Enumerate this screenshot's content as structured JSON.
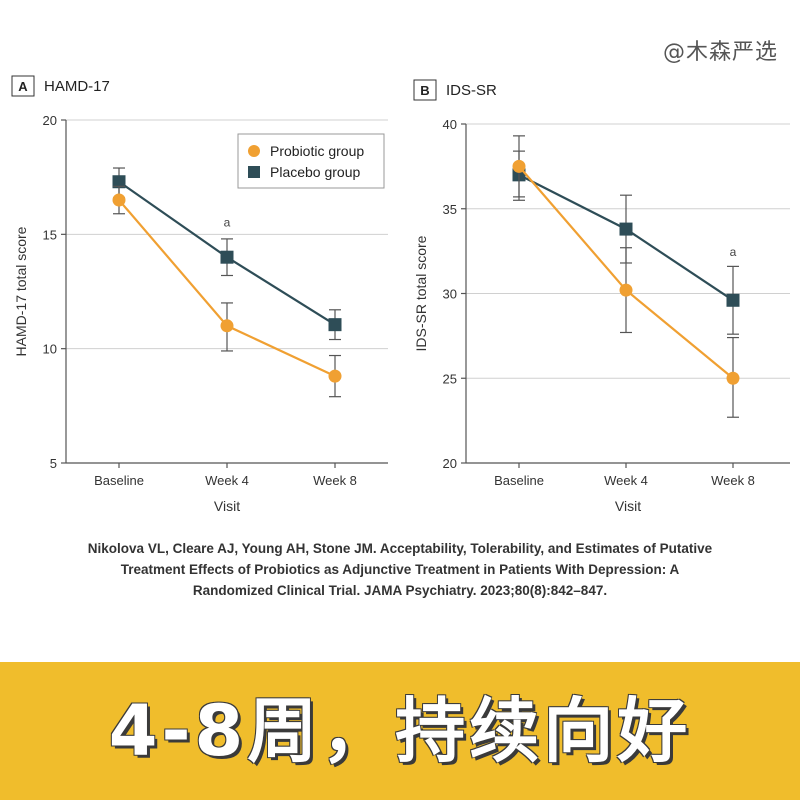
{
  "watermark": "@木森严选",
  "chart_data": [
    {
      "type": "line",
      "panel": "A",
      "title": "HAMD-17",
      "xlabel": "Visit",
      "ylabel": "HAMD-17 total score",
      "categories": [
        "Baseline",
        "Week 4",
        "Week 8"
      ],
      "ylim": [
        5,
        20
      ],
      "yticks": [
        5,
        10,
        15,
        20
      ],
      "grid": true,
      "legend_position": "top-right",
      "series": [
        {
          "name": "Probiotic group",
          "color": "#f0a032",
          "marker": "circle",
          "values": [
            16.5,
            11.0,
            8.8
          ],
          "err_low": [
            15.9,
            9.9,
            7.9
          ],
          "err_high": [
            17.1,
            12.0,
            9.7
          ]
        },
        {
          "name": "Placebo group",
          "color": "#2e4d57",
          "marker": "square",
          "values": [
            17.3,
            14.0,
            11.05
          ],
          "err_low": [
            16.6,
            13.2,
            10.4
          ],
          "err_high": [
            17.9,
            14.8,
            11.7
          ]
        }
      ],
      "annotations": [
        {
          "text": "a",
          "category_index": 1,
          "y": 15.35
        }
      ]
    },
    {
      "type": "line",
      "panel": "B",
      "title": "IDS-SR",
      "xlabel": "Visit",
      "ylabel": "IDS-SR total score",
      "categories": [
        "Baseline",
        "Week 4",
        "Week 8"
      ],
      "ylim": [
        20,
        40
      ],
      "yticks": [
        20,
        25,
        30,
        35,
        40
      ],
      "grid": true,
      "series": [
        {
          "name": "Probiotic group",
          "color": "#f0a032",
          "marker": "circle",
          "values": [
            37.5,
            30.2,
            25.0
          ],
          "err_low": [
            35.7,
            27.7,
            22.7
          ],
          "err_high": [
            39.3,
            32.7,
            27.4
          ]
        },
        {
          "name": "Placebo group",
          "color": "#2e4d57",
          "marker": "square",
          "values": [
            37.0,
            33.8,
            29.6
          ],
          "err_low": [
            35.5,
            31.8,
            27.6
          ],
          "err_high": [
            38.4,
            35.8,
            31.6
          ]
        }
      ],
      "annotations": [
        {
          "text": "a",
          "category_index": 2,
          "y": 32.2
        }
      ]
    }
  ],
  "citation": {
    "line1": "Nikolova VL, Cleare AJ, Young AH, Stone JM. Acceptability, Tolerability, and Estimates of Putative",
    "line2": "Treatment Effects of Probiotics as Adjunctive Treatment in Patients With Depression: A",
    "line3": "Randomized Clinical Trial. JAMA Psychiatry. 2023;80(8):842–847."
  },
  "banner": {
    "text": "4-8周，持续向好",
    "background": "#f0bd2c"
  }
}
